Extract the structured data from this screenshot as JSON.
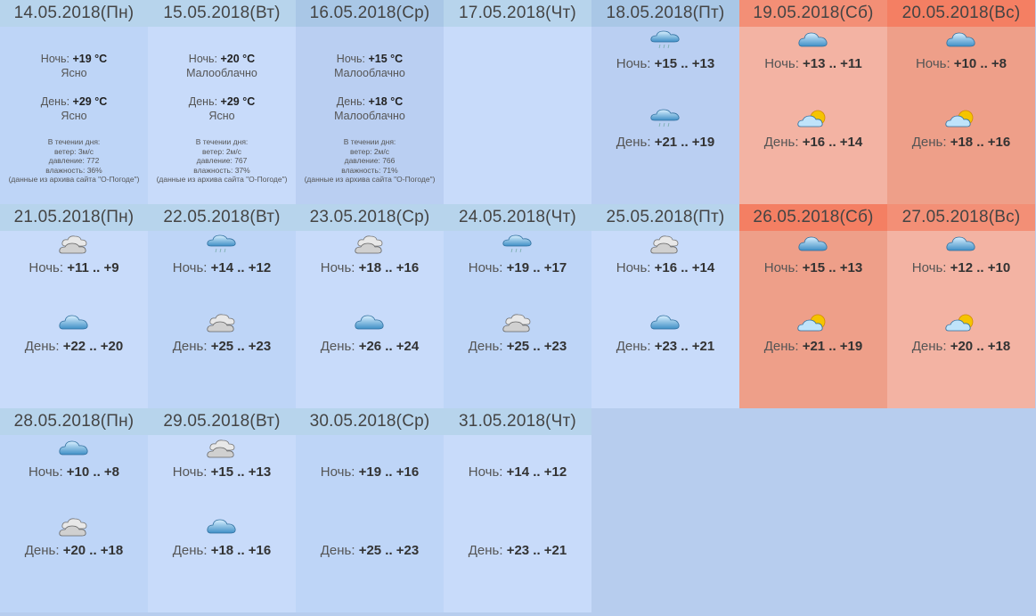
{
  "labels": {
    "night": "Ночь:",
    "day": "День:"
  },
  "detailed": [
    {
      "date": "14.05.2018(Пн)",
      "night_temp": "+19 °C",
      "night_desc": "Ясно",
      "day_temp": "+29 °C",
      "day_desc": "Ясно",
      "info": [
        "В течении дня:",
        "ветер: 3м/с",
        "давление: 772",
        "влажность: 36%",
        "(данные из архива сайта \"О-Погоде\")"
      ]
    },
    {
      "date": "15.05.2018(Вт)",
      "night_temp": "+20 °C",
      "night_desc": "Малооблачно",
      "day_temp": "+29 °C",
      "day_desc": "Ясно",
      "info": [
        "В течении дня:",
        "ветер: 2м/с",
        "давление: 767",
        "влажность: 37%",
        "(данные из архива сайта \"О-Погоде\")"
      ]
    },
    {
      "date": "16.05.2018(Ср)",
      "night_temp": "+15 °C",
      "night_desc": "Малооблачно",
      "day_temp": "+18 °C",
      "day_desc": "Малооблачно",
      "info": [
        "В течении дня:",
        "ветер: 2м/с",
        "давление: 766",
        "влажность: 71%",
        "(данные из архива сайта \"О-Погоде\")"
      ]
    }
  ],
  "days": [
    {
      "date": "17.05.2018(Чт)"
    },
    {
      "date": "18.05.2018(Пт)",
      "night_icon": "rain-cloud-icon",
      "night": "+15 .. +13",
      "day_icon": "rain-cloud-icon",
      "day": "+21 .. +19"
    },
    {
      "date": "19.05.2018(Сб)",
      "night_icon": "cloud-icon",
      "night": "+13 .. +11",
      "day_icon": "sun-cloud-icon",
      "day": "+16 .. +14"
    },
    {
      "date": "20.05.2018(Вс)",
      "night_icon": "cloud-icon",
      "night": "+10 .. +8",
      "day_icon": "sun-cloud-icon",
      "day": "+18 .. +16"
    },
    {
      "date": "21.05.2018(Пн)",
      "night_icon": "overcast-icon",
      "night": "+11 .. +9",
      "day_icon": "cloud-icon",
      "day": "+22 .. +20"
    },
    {
      "date": "22.05.2018(Вт)",
      "night_icon": "rain-cloud-icon",
      "night": "+14 .. +12",
      "day_icon": "overcast-icon",
      "day": "+25 .. +23"
    },
    {
      "date": "23.05.2018(Ср)",
      "night_icon": "overcast-icon",
      "night": "+18 .. +16",
      "day_icon": "cloud-icon",
      "day": "+26 .. +24"
    },
    {
      "date": "24.05.2018(Чт)",
      "night_icon": "rain-cloud-icon",
      "night": "+19 .. +17",
      "day_icon": "overcast-icon",
      "day": "+25 .. +23"
    },
    {
      "date": "25.05.2018(Пт)",
      "night_icon": "overcast-icon",
      "night": "+16 .. +14",
      "day_icon": "cloud-icon",
      "day": "+23 .. +21"
    },
    {
      "date": "26.05.2018(Сб)",
      "night_icon": "cloud-icon",
      "night": "+15 .. +13",
      "day_icon": "sun-cloud-icon",
      "day": "+21 .. +19"
    },
    {
      "date": "27.05.2018(Вс)",
      "night_icon": "cloud-icon",
      "night": "+12 .. +10",
      "day_icon": "sun-cloud-icon",
      "day": "+20 .. +18"
    },
    {
      "date": "28.05.2018(Пн)",
      "night_icon": "cloud-icon",
      "night": "+10 .. +8",
      "day_icon": "overcast-icon",
      "day": "+20 .. +18"
    },
    {
      "date": "29.05.2018(Вт)",
      "night_icon": "overcast-icon",
      "night": "+15 .. +13",
      "day_icon": "cloud-icon",
      "day": "+18 .. +16"
    },
    {
      "date": "30.05.2018(Ср)",
      "night_icon": "none",
      "night": "+19 .. +16",
      "day_icon": "none",
      "day": "+25 .. +23"
    },
    {
      "date": "31.05.2018(Чт)",
      "night_icon": "none",
      "night": "+14 .. +12",
      "day_icon": "none",
      "day": "+23 .. +21"
    }
  ],
  "colors": {
    "weekday_bg": "#c8dbfa",
    "weekend_bg": "#f3b3a3",
    "weekend_header": "#f47f63",
    "header_bg": "#b7d4ec",
    "page_bg": "#b7cdee"
  }
}
